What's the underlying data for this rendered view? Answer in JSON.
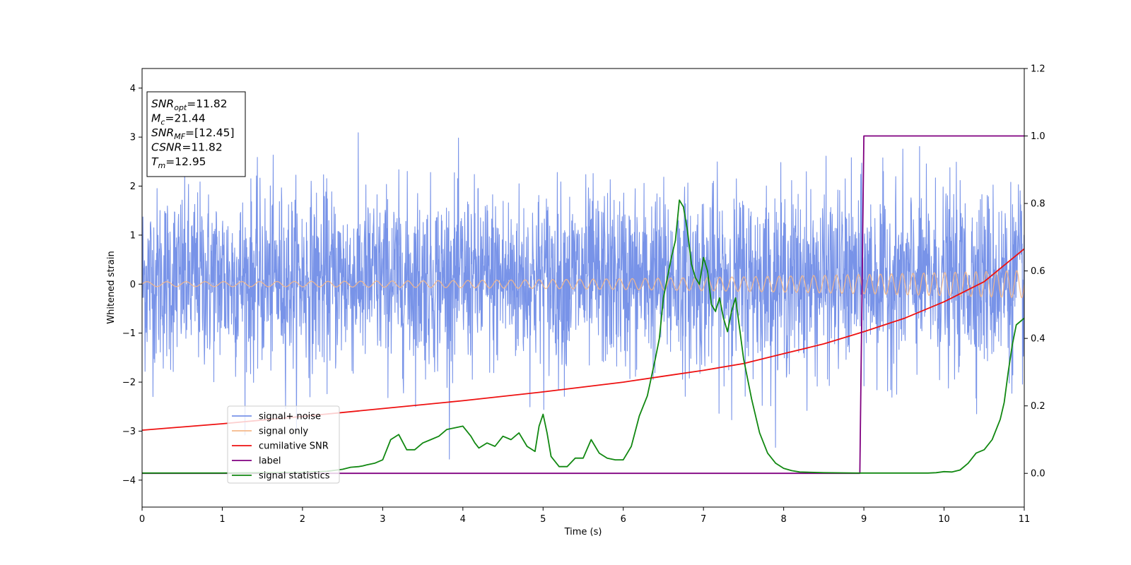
{
  "chart_data": {
    "type": "line",
    "title": "",
    "xlabel": "Time (s)",
    "ylabel": "Whitened strain",
    "xlim": [
      0,
      11
    ],
    "ylim_left": [
      -4.55,
      4.4
    ],
    "ylim_right": [
      -0.1,
      1.2
    ],
    "x_ticks": [
      "0",
      "1",
      "2",
      "3",
      "4",
      "5",
      "6",
      "7",
      "8",
      "9",
      "10",
      "11"
    ],
    "y_left_ticks": [
      "−4",
      "−3",
      "−2",
      "−1",
      "0",
      "1",
      "2",
      "3",
      "4"
    ],
    "y_right_ticks": [
      "0.0",
      "0.2",
      "0.4",
      "0.6",
      "0.8",
      "1.0",
      "1.2"
    ],
    "grid": false,
    "legend_position": "lower-left",
    "info_box": {
      "position": "top-left",
      "lines": [
        {
          "sym": "SNR",
          "sub": "opt",
          "val": "=11.82"
        },
        {
          "sym": "M",
          "sub": "c",
          "val": "=21.44"
        },
        {
          "sym": "SNR",
          "sub": "MF",
          "val": "=[12.45]"
        },
        {
          "sym": "CSNR",
          "sub": "",
          "val": "=11.82"
        },
        {
          "sym": "T",
          "sub": "m",
          "val": "=12.95"
        }
      ]
    },
    "series": [
      {
        "name": "signal+ noise",
        "axis": "left",
        "color": "#7893e8",
        "style": "noise",
        "mean": 0.1,
        "band_low": -1.9,
        "band_high": 2.3,
        "min": -4.15,
        "max": 4.0
      },
      {
        "name": "signal only",
        "axis": "left",
        "color": "#f5b88a",
        "style": "chirp",
        "amp_start": 0.05,
        "amp_end": 0.28,
        "freq_start_hz": 4,
        "freq_end_hz": 8
      },
      {
        "name": "cumilative SNR",
        "axis": "left",
        "color": "#ee1111",
        "x": [
          0,
          1,
          2,
          3,
          4,
          5,
          6,
          6.5,
          7,
          7.5,
          8,
          8.5,
          9,
          9.5,
          10,
          10.5,
          11
        ],
        "y": [
          -2.98,
          -2.85,
          -2.7,
          -2.54,
          -2.38,
          -2.2,
          -2.0,
          -1.88,
          -1.76,
          -1.62,
          -1.42,
          -1.22,
          -0.97,
          -0.7,
          -0.36,
          0.05,
          0.72
        ]
      },
      {
        "name": "label",
        "axis": "right",
        "color": "#800080",
        "x": [
          0,
          8.95,
          9.0,
          11
        ],
        "y": [
          0,
          0,
          1,
          1
        ]
      },
      {
        "name": "signal statistics",
        "axis": "right",
        "color": "#118811",
        "x": [
          0,
          0.5,
          1,
          1.5,
          2,
          2.3,
          2.5,
          2.6,
          2.7,
          2.75,
          2.8,
          2.9,
          3.0,
          3.1,
          3.2,
          3.3,
          3.4,
          3.5,
          3.6,
          3.7,
          3.8,
          3.9,
          4.0,
          4.1,
          4.15,
          4.2,
          4.3,
          4.35,
          4.4,
          4.5,
          4.6,
          4.7,
          4.8,
          4.9,
          4.95,
          5.0,
          5.05,
          5.1,
          5.2,
          5.3,
          5.4,
          5.5,
          5.6,
          5.7,
          5.8,
          5.9,
          6.0,
          6.1,
          6.2,
          6.3,
          6.4,
          6.45,
          6.5,
          6.6,
          6.65,
          6.7,
          6.75,
          6.8,
          6.85,
          6.9,
          6.95,
          7.0,
          7.05,
          7.1,
          7.15,
          7.2,
          7.25,
          7.3,
          7.35,
          7.4,
          7.5,
          7.6,
          7.7,
          7.8,
          7.9,
          8.0,
          8.1,
          8.2,
          8.5,
          8.9,
          9.0,
          9.5,
          9.8,
          9.9,
          10.0,
          10.1,
          10.2,
          10.3,
          10.4,
          10.5,
          10.6,
          10.7,
          10.75,
          10.8,
          10.85,
          10.9,
          11.0
        ],
        "y": [
          0.001,
          0.001,
          0.001,
          0.002,
          0.003,
          0.006,
          0.012,
          0.018,
          0.02,
          0.022,
          0.025,
          0.03,
          0.04,
          0.1,
          0.115,
          0.07,
          0.07,
          0.09,
          0.1,
          0.11,
          0.13,
          0.135,
          0.14,
          0.11,
          0.09,
          0.075,
          0.09,
          0.085,
          0.08,
          0.11,
          0.1,
          0.12,
          0.08,
          0.065,
          0.14,
          0.175,
          0.12,
          0.05,
          0.02,
          0.02,
          0.045,
          0.045,
          0.1,
          0.06,
          0.045,
          0.04,
          0.04,
          0.08,
          0.17,
          0.23,
          0.34,
          0.4,
          0.52,
          0.64,
          0.69,
          0.81,
          0.79,
          0.72,
          0.62,
          0.58,
          0.56,
          0.64,
          0.6,
          0.5,
          0.48,
          0.52,
          0.46,
          0.42,
          0.48,
          0.52,
          0.34,
          0.22,
          0.12,
          0.06,
          0.03,
          0.015,
          0.008,
          0.004,
          0.002,
          0.001,
          0.001,
          0.001,
          0.001,
          0.002,
          0.005,
          0.004,
          0.01,
          0.03,
          0.06,
          0.07,
          0.1,
          0.16,
          0.21,
          0.3,
          0.38,
          0.44,
          0.46
        ]
      }
    ]
  }
}
